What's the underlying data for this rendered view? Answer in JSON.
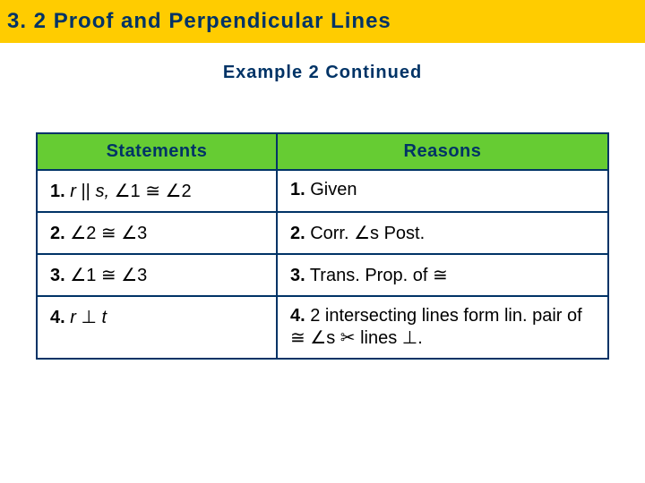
{
  "header": {
    "title": "3. 2 Proof and Perpendicular Lines"
  },
  "subtitle": "Example 2 Continued",
  "table": {
    "headers": {
      "statements": "Statements",
      "reasons": "Reasons"
    },
    "rows": [
      {
        "num": "1.",
        "stmt_html": "<span class='ital'>r</span> || <span class='ital'>s,</span> <span class='sym'>∠</span>1 <span class='sym'>≅</span> <span class='sym'>∠</span>2",
        "rsn_num": "1.",
        "rsn_html": "Given"
      },
      {
        "num": "2.",
        "stmt_html": "<span class='sym'>∠</span>2 <span class='sym'>≅</span> <span class='sym'>∠</span>3",
        "rsn_num": "2.",
        "rsn_html": "Corr. <span class='sym'>∠</span>s Post."
      },
      {
        "num": "3.",
        "stmt_html": "<span class='sym'>∠</span>1 <span class='sym'>≅</span> <span class='sym'>∠</span>3",
        "rsn_num": "3.",
        "rsn_html": "Trans. Prop. of <span class='sym'>≅</span>"
      },
      {
        "num": "4.",
        "stmt_html": "<span class='ital'>r</span> <span class='sym'>⊥</span> <span class='ital'>t</span>",
        "rsn_num": "4.",
        "rsn_html": "2 intersecting lines form lin. pair of <span class='sym'>≅</span> <span class='sym'>∠</span>s <span class='sym'>✂</span> lines <span class='sym'>⊥</span>."
      }
    ],
    "colors": {
      "header_bg": "#66cc33",
      "header_fg": "#003366",
      "border": "#003366",
      "banner_bg": "#ffcc00"
    }
  }
}
